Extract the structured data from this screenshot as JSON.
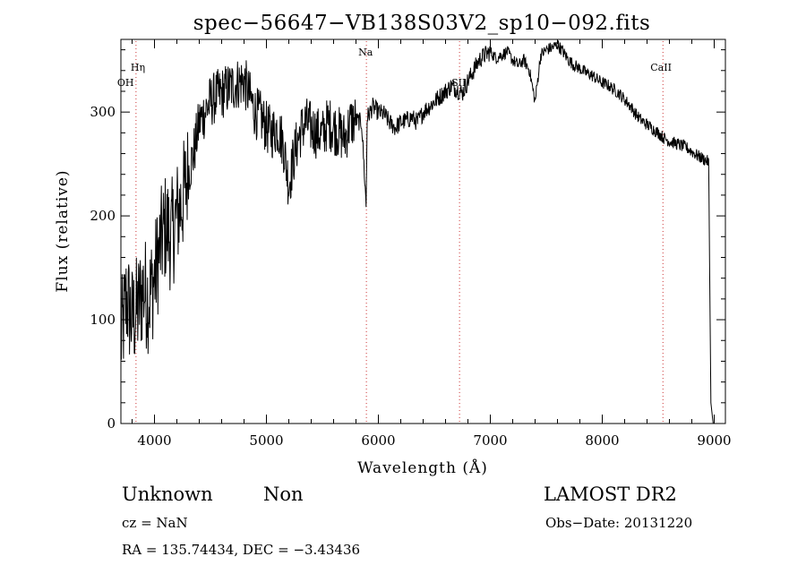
{
  "chart_data": {
    "type": "line",
    "title": "spec−56647−VB138S03V2_sp10−092.fits",
    "xlabel": "Wavelength (Å)",
    "ylabel": "Flux (relative)",
    "xlim": [
      3700,
      9100
    ],
    "ylim": [
      0,
      370
    ],
    "xticks": [
      4000,
      5000,
      6000,
      7000,
      8000,
      9000
    ],
    "yticks": [
      0,
      100,
      200,
      300
    ],
    "line_color": "#000000",
    "marker_color": "#cc3333",
    "series": [
      {
        "x": [
          3700,
          3750,
          3800,
          3850,
          3900,
          3950,
          4000,
          4050,
          4100,
          4150,
          4200,
          4250,
          4300,
          4350,
          4400,
          4450,
          4500,
          4550,
          4600,
          4650,
          4700,
          4750,
          4800,
          4850,
          4900,
          4950,
          5000,
          5050,
          5100,
          5150,
          5200,
          5250,
          5300,
          5350,
          5400,
          5450,
          5500,
          5550,
          5600,
          5650,
          5700,
          5750,
          5800,
          5850,
          5890,
          5900,
          5950,
          6000,
          6050,
          6100,
          6150,
          6200,
          6250,
          6300,
          6350,
          6400,
          6450,
          6500,
          6550,
          6600,
          6650,
          6700,
          6750,
          6800,
          6850,
          6900,
          6950,
          7000,
          7050,
          7100,
          7150,
          7200,
          7250,
          7300,
          7350,
          7400,
          7450,
          7500,
          7550,
          7600,
          7650,
          7700,
          7750,
          7800,
          7850,
          7900,
          7950,
          8000,
          8050,
          8100,
          8150,
          8200,
          8250,
          8300,
          8350,
          8400,
          8450,
          8500,
          8550,
          8600,
          8650,
          8700,
          8750,
          8800,
          8850,
          8900,
          8950,
          8970,
          8990
        ],
        "y": [
          80,
          120,
          100,
          110,
          130,
          120,
          140,
          170,
          190,
          180,
          200,
          215,
          240,
          260,
          290,
          300,
          310,
          315,
          318,
          322,
          325,
          328,
          330,
          315,
          300,
          295,
          285,
          280,
          285,
          270,
          230,
          260,
          280,
          290,
          285,
          280,
          278,
          290,
          285,
          280,
          275,
          290,
          292,
          290,
          210,
          295,
          305,
          300,
          298,
          290,
          285,
          290,
          292,
          295,
          290,
          300,
          305,
          310,
          315,
          320,
          325,
          322,
          318,
          330,
          340,
          350,
          355,
          358,
          352,
          355,
          358,
          350,
          345,
          350,
          340,
          310,
          355,
          360,
          362,
          365,
          358,
          350,
          345,
          342,
          338,
          336,
          332,
          328,
          326,
          322,
          318,
          312,
          306,
          298,
          292,
          288,
          284,
          280,
          275,
          272,
          270,
          268,
          266,
          262,
          258,
          255,
          252,
          20,
          0
        ]
      }
    ],
    "line_markers": [
      {
        "label": "Hη",
        "x": 3835
      },
      {
        "label": "OH",
        "x": 3835
      },
      {
        "label": "Na",
        "x": 5893
      },
      {
        "label": "SII",
        "x": 6725
      },
      {
        "label": "CaII",
        "x": 8542
      }
    ]
  },
  "info": {
    "class": "Unknown",
    "subclass": "Non",
    "survey": "LAMOST DR2",
    "cz": "cz = NaN",
    "obs_date": "Obs−Date: 20131220",
    "coords": "RA = 135.74434, DEC =  −3.43436"
  }
}
